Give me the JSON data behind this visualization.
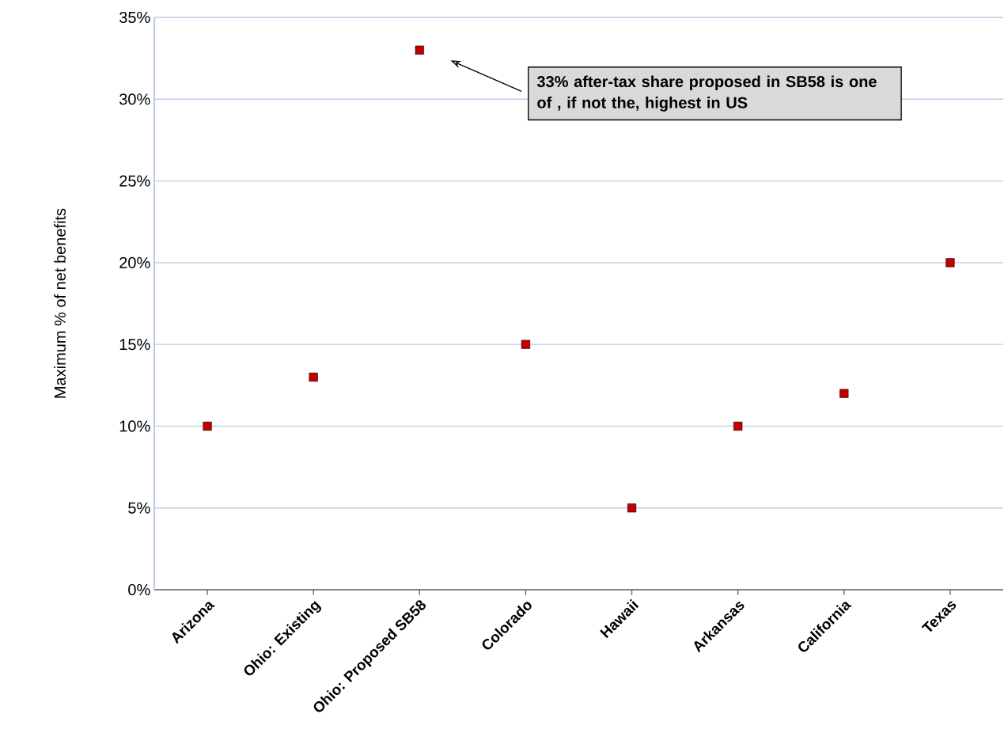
{
  "chart_data": {
    "type": "scatter",
    "ylabel": "Maximum % of net benefits",
    "categories": [
      "Arizona",
      "Ohio: Existing",
      "Ohio: Proposed SB58",
      "Colorado",
      "Hawaii",
      "Arkansas",
      "California",
      "Texas"
    ],
    "values": [
      10,
      13,
      33,
      15,
      5,
      10,
      12,
      20
    ],
    "color": "#c00000",
    "ylim": [
      0,
      35
    ],
    "yticks": [
      {
        "value": 0,
        "label": "0%"
      },
      {
        "value": 5,
        "label": "5%"
      },
      {
        "value": 10,
        "label": "10%"
      },
      {
        "value": 15,
        "label": "15%"
      },
      {
        "value": 20,
        "label": "20%"
      },
      {
        "value": 25,
        "label": "25%"
      },
      {
        "value": 30,
        "label": "30%"
      },
      {
        "value": 35,
        "label": "35%"
      }
    ],
    "grid": "y",
    "annotations": [
      "**33% after-tax share proposed in SB58 is one of , if not the, highest in US**"
    ]
  }
}
